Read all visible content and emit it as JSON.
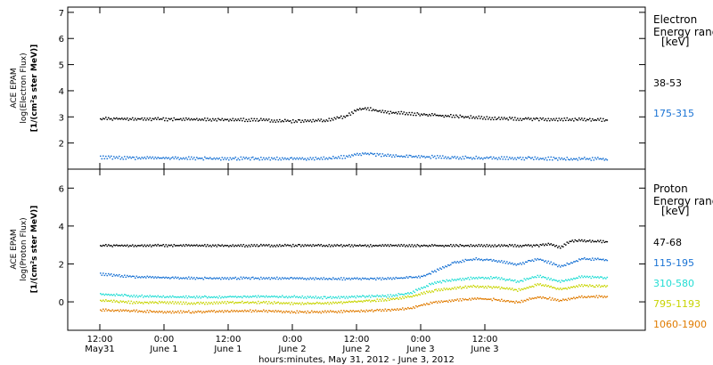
{
  "chart_data": [
    {
      "type": "scatter",
      "ylabel_lines": [
        "ACE EPAM",
        "log(Electron Flux)",
        "[1/(cm²s ster MeV)]"
      ],
      "ylim": [
        1.0,
        7.2
      ],
      "yticks": [
        2,
        3,
        4,
        5,
        6,
        7
      ],
      "legend_title": [
        "Electron",
        "Energy ranges",
        "[keV]"
      ],
      "series": [
        {
          "name": "38-53",
          "color": "#000000",
          "x": [
            0,
            6,
            12,
            18,
            24,
            30,
            36,
            42,
            46,
            48,
            50,
            52,
            54,
            56,
            60,
            66,
            72,
            78,
            84,
            90,
            95
          ],
          "values": [
            2.95,
            2.95,
            2.93,
            2.92,
            2.92,
            2.9,
            2.85,
            2.88,
            3.05,
            3.3,
            3.35,
            3.25,
            3.18,
            3.17,
            3.12,
            3.05,
            2.98,
            2.95,
            2.93,
            2.92,
            2.9
          ]
        },
        {
          "name": "175-315",
          "color": "#1a73d4",
          "x": [
            0,
            6,
            12,
            18,
            24,
            30,
            36,
            42,
            46,
            48,
            50,
            52,
            54,
            56,
            60,
            66,
            72,
            78,
            84,
            90,
            95
          ],
          "values": [
            1.48,
            1.45,
            1.44,
            1.44,
            1.43,
            1.43,
            1.42,
            1.43,
            1.5,
            1.58,
            1.62,
            1.57,
            1.53,
            1.51,
            1.5,
            1.47,
            1.45,
            1.44,
            1.43,
            1.42,
            1.41
          ]
        }
      ]
    },
    {
      "type": "scatter",
      "ylabel_lines": [
        "ACE EPAM",
        "log(Proton Flux)",
        "[1/(cm²s ster MeV)]"
      ],
      "ylim": [
        -1.5,
        7.0
      ],
      "yticks": [
        0,
        2,
        4,
        6
      ],
      "legend_title": [
        "Proton",
        "Energy ranges",
        "[keV]"
      ],
      "series": [
        {
          "name": "47-68",
          "color": "#000000",
          "x": [
            0,
            6,
            12,
            18,
            24,
            30,
            36,
            42,
            48,
            54,
            60,
            66,
            72,
            78,
            82,
            84,
            86,
            88,
            90,
            95
          ],
          "values": [
            3.0,
            3.0,
            3.0,
            3.0,
            3.0,
            3.0,
            3.0,
            3.0,
            3.0,
            3.0,
            3.0,
            3.0,
            3.0,
            3.0,
            3.0,
            3.1,
            2.9,
            3.25,
            3.25,
            3.2
          ]
        },
        {
          "name": "115-195",
          "color": "#1a73d4",
          "x": [
            0,
            6,
            12,
            18,
            24,
            30,
            36,
            42,
            48,
            54,
            60,
            63,
            66,
            70,
            74,
            78,
            82,
            86,
            90,
            95
          ],
          "values": [
            1.5,
            1.35,
            1.3,
            1.28,
            1.28,
            1.28,
            1.27,
            1.25,
            1.25,
            1.25,
            1.35,
            1.7,
            2.1,
            2.3,
            2.2,
            2.0,
            2.3,
            1.9,
            2.3,
            2.25
          ]
        },
        {
          "name": "310-580",
          "color": "#22ddd4",
          "x": [
            0,
            6,
            12,
            18,
            24,
            30,
            36,
            42,
            48,
            54,
            58,
            62,
            66,
            70,
            74,
            78,
            82,
            86,
            90,
            95
          ],
          "values": [
            0.45,
            0.35,
            0.3,
            0.28,
            0.3,
            0.32,
            0.3,
            0.25,
            0.3,
            0.35,
            0.5,
            1.0,
            1.2,
            1.3,
            1.3,
            1.1,
            1.4,
            1.1,
            1.35,
            1.3
          ]
        },
        {
          "name": "795-1193",
          "color": "#c8d400",
          "x": [
            0,
            6,
            12,
            18,
            24,
            30,
            36,
            42,
            48,
            54,
            58,
            62,
            66,
            70,
            74,
            78,
            82,
            86,
            90,
            95
          ],
          "values": [
            0.1,
            0.0,
            0.0,
            -0.05,
            0.0,
            0.0,
            -0.05,
            -0.05,
            0.05,
            0.15,
            0.3,
            0.6,
            0.75,
            0.85,
            0.8,
            0.65,
            0.95,
            0.7,
            0.9,
            0.85
          ]
        },
        {
          "name": "1060-1900",
          "color": "#e07b00",
          "x": [
            0,
            6,
            12,
            18,
            24,
            30,
            36,
            42,
            48,
            54,
            58,
            62,
            66,
            70,
            74,
            78,
            82,
            86,
            90,
            95
          ],
          "values": [
            -0.4,
            -0.45,
            -0.5,
            -0.5,
            -0.45,
            -0.45,
            -0.5,
            -0.5,
            -0.45,
            -0.4,
            -0.3,
            0.0,
            0.1,
            0.2,
            0.15,
            0.0,
            0.3,
            0.1,
            0.3,
            0.3
          ]
        }
      ]
    }
  ],
  "x_axis": {
    "range": [
      -6,
      102
    ],
    "ticks": [
      {
        "x": 0,
        "line1": "12:00",
        "line2": "May31"
      },
      {
        "x": 12,
        "line1": "0:00",
        "line2": "June 1"
      },
      {
        "x": 24,
        "line1": "12:00",
        "line2": "June 1"
      },
      {
        "x": 36,
        "line1": "0:00",
        "line2": "June 2"
      },
      {
        "x": 48,
        "line1": "12:00",
        "line2": "June 2"
      },
      {
        "x": 60,
        "line1": "0:00",
        "line2": "June 3"
      },
      {
        "x": 72,
        "line1": "12:00",
        "line2": "June 3"
      }
    ],
    "title": "hours:minutes, May 31, 2012 - June  3, 2012"
  }
}
